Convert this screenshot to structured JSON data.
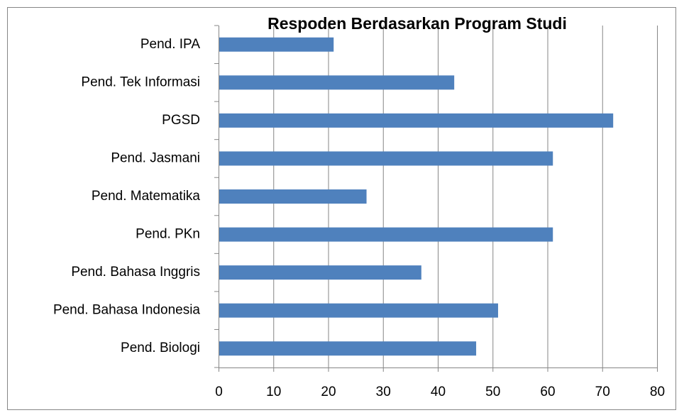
{
  "chart_data": {
    "type": "bar",
    "orientation": "horizontal",
    "title": "Respoden Berdasarkan Program Studi",
    "categories": [
      "Pend. IPA",
      "Pend. Tek Informasi",
      "PGSD",
      "Pend. Jasmani",
      "Pend. Matematika",
      "Pend. PKn",
      "Pend. Bahasa Inggris",
      "Pend. Bahasa Indonesia",
      "Pend. Biologi"
    ],
    "values": [
      21,
      43,
      72,
      61,
      27,
      61,
      37,
      51,
      47
    ],
    "color": "#4f81bd",
    "xlim": [
      0,
      80
    ],
    "xticks": [
      0,
      10,
      20,
      30,
      40,
      50,
      60,
      70,
      80
    ],
    "grid": true
  }
}
